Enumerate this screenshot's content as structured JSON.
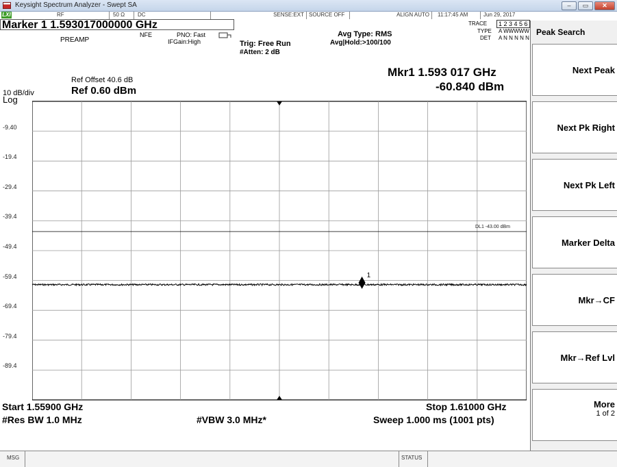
{
  "window": {
    "title": "Keysight Spectrum Analyzer - Swept SA",
    "min": "–",
    "max": "▭",
    "close": "✕"
  },
  "topbar": {
    "lxi": "LXI",
    "rf": "RF",
    "impedance": "50 Ω",
    "coupling": "DC",
    "sense": "SENSE:EXT",
    "source": "SOURCE OFF",
    "align": "ALIGN AUTO",
    "time": "11:17:45 AM",
    "date": "Jun 29, 2017"
  },
  "marker": {
    "line": "Marker 1 1.593017000000 GHz",
    "preamp": "PREAMP",
    "nfe": "NFE",
    "pno": "PNO: Fast",
    "ifgain": "IFGain:High",
    "trig": "Trig: Free Run",
    "atten": "#Atten: 2 dB",
    "avg_type": "Avg Type: RMS",
    "avg_hold": "Avg|Hold:>100/100",
    "mkr_freq": "Mkr1 1.593 017 GHz",
    "mkr_amp": "-60.840 dBm"
  },
  "trace": {
    "trace_label": "TRACE",
    "trace_vals": "1 2 3 4 5 6",
    "type_label": "TYPE",
    "type_vals": "A WWWWW",
    "det_label": "DET",
    "det_vals": "A N N N N N"
  },
  "ref": {
    "offset": "Ref Offset 40.6 dB",
    "scale": "10 dB/div",
    "level": "Ref 0.60 dBm",
    "log": "Log"
  },
  "chart_data": {
    "type": "line",
    "x_start_ghz": 1.559,
    "x_stop_ghz": 1.61,
    "ylim": [
      -99.4,
      0.6
    ],
    "yticks": [
      "-9.40",
      "-19.4",
      "-29.4",
      "-39.4",
      "-49.4",
      "-59.4",
      "-69.4",
      "-79.4",
      "-89.4"
    ],
    "ytick_values": [
      -9.4,
      -19.4,
      -29.4,
      -39.4,
      -49.4,
      -59.4,
      -69.4,
      -79.4,
      -89.4
    ],
    "noise_floor_dbm": -60.8,
    "display_line_dbm": -43.0,
    "display_line_label": "DL1 -43.00 dBm",
    "marker_label": "1",
    "marker_x_ghz": 1.593017,
    "marker_y_dbm": -60.84,
    "trace_color": "#000000",
    "grid": true
  },
  "bottom": {
    "start": "Start 1.55900 GHz",
    "stop": "Stop 1.61000 GHz",
    "rbw": "#Res BW 1.0 MHz",
    "vbw": "#VBW 3.0 MHz*",
    "sweep": "Sweep  1.000 ms (1001 pts)"
  },
  "status": {
    "msg": "MSG",
    "status": "STATUS"
  },
  "softkeys": {
    "title": "Peak Search",
    "items": [
      {
        "label": "Next Peak",
        "sub": ""
      },
      {
        "label": "Next Pk Right",
        "sub": ""
      },
      {
        "label": "Next Pk Left",
        "sub": ""
      },
      {
        "label": "Marker Delta",
        "sub": ""
      },
      {
        "label": "Mkr→CF",
        "sub": ""
      },
      {
        "label": "Mkr→Ref Lvl",
        "sub": ""
      },
      {
        "label": "More",
        "sub": "1 of 2"
      }
    ]
  }
}
